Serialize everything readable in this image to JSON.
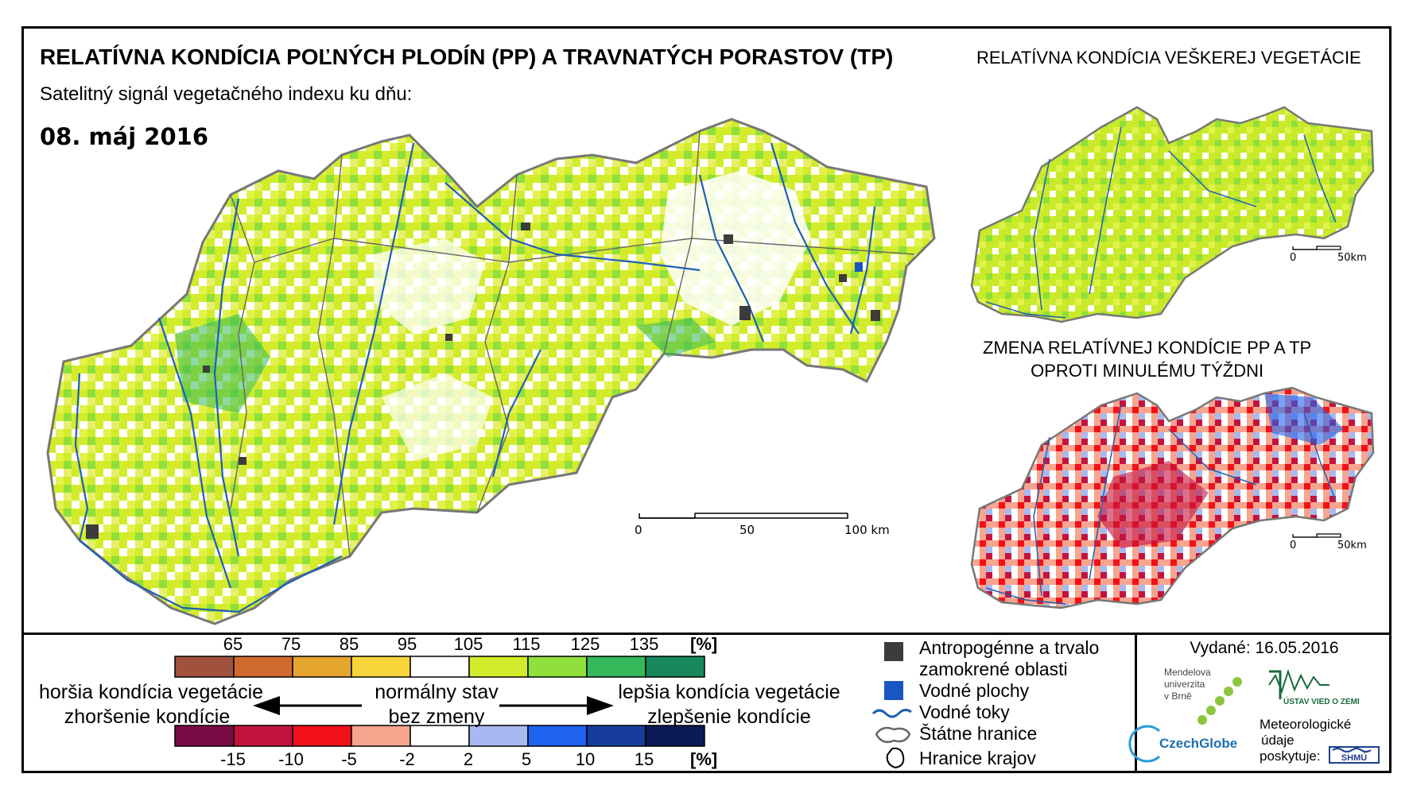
{
  "header": {
    "title": "RELATÍVNA KONDÍCIA POĽNÝCH PLODÍN (PP) A TRAVNATÝCH PORASTOV (TP)",
    "subtitle": "Satelitný signál vegetačného indexu ku dňu:",
    "date": "08. máj 2016"
  },
  "side_maps": {
    "all_vegetation_title": "RELATÍVNA KONDÍCIA VEŠKEREJ VEGETÁCIE",
    "change_title_line1": "ZMENA RELATÍVNEJ KONDÍCIE PP A TP",
    "change_title_line2": "OPROTI MINULÉMU TÝŽDNI",
    "scale_labels": [
      "0",
      "50km"
    ]
  },
  "main_map": {
    "scale_labels": [
      "0",
      "50",
      "100 km"
    ]
  },
  "legend_condition": {
    "unit": "[%]",
    "ticks": [
      "65",
      "75",
      "85",
      "95",
      "105",
      "115",
      "125",
      "135"
    ],
    "colors": [
      "#a0523d",
      "#d06a30",
      "#e3a52e",
      "#f7d63c",
      "#ffffff",
      "#d2ec2b",
      "#8fe03a",
      "#33b95a",
      "#17875c"
    ]
  },
  "legend_change": {
    "unit": "[%]",
    "ticks": [
      "-15",
      "-10",
      "-5",
      "-2",
      "2",
      "5",
      "10",
      "15"
    ],
    "colors": [
      "#7a0a46",
      "#c4123f",
      "#f2101a",
      "#f7a58f",
      "#ffffff",
      "#a8b9f1",
      "#1f63f0",
      "#163d9c",
      "#0b1b55"
    ]
  },
  "legend_text": {
    "worse_line1": "horšia kondícia vegetácie",
    "worse_line2": "zhoršenie kondície",
    "normal_line1": "normálny stav",
    "normal_line2": "bez zmeny",
    "better_line1": "lepšia kondícia vegetácie",
    "better_line2": "zlepšenie kondície"
  },
  "legend_symbols": {
    "anthropogenic_line1": "Antropogénne a trvalo",
    "anthropogenic_line2": "zamokrené oblasti",
    "water_bodies": "Vodné plochy",
    "rivers": "Vodné toky",
    "state_borders": "Štátne hranice",
    "region_borders": "Hranice krajov",
    "colors": {
      "anthropogenic": "#3c3c3c",
      "water": "#1a56c0",
      "river": "#1f5fb5"
    }
  },
  "credits": {
    "issued": "Vydané: 16.05.2016",
    "mendel_line1": "Mendelova",
    "mendel_line2": "univerzita",
    "mendel_line3": "v Brně",
    "czechglobe": "CzechGlobe",
    "uvoz_line1": "ÚSTAV VIED O ZEMI",
    "meteo_line1": "Meteorologické",
    "meteo_line2": "údaje",
    "meteo_line3": "poskytuje:",
    "shmu": "SHMÚ"
  }
}
